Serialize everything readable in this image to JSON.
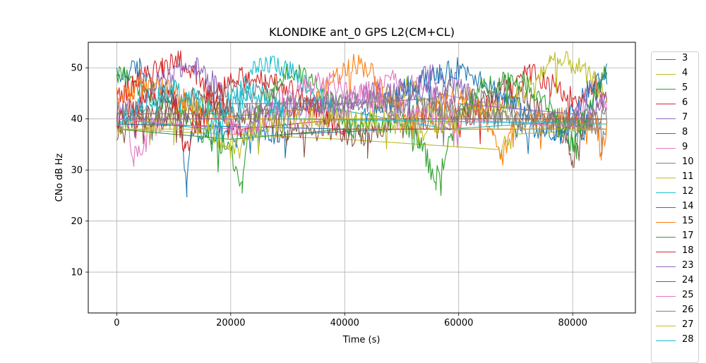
{
  "chart_data": {
    "type": "line",
    "title": "KLONDIKE ant_0 GPS L2(CM+CL)",
    "xlabel": "Time (s)",
    "ylabel": "CNo dB Hz",
    "xlim": [
      -5000,
      91000
    ],
    "ylim": [
      2,
      55
    ],
    "xticks": [
      0,
      20000,
      40000,
      60000,
      80000
    ],
    "yticks": [
      10,
      20,
      30,
      40,
      50
    ],
    "grid": true,
    "legend_position": "right",
    "series": [
      {
        "name": "3",
        "color": "#1f77b4",
        "x": [
          0,
          4000,
          8000,
          11000,
          12300,
          13000,
          16000,
          30000,
          50000,
          70000,
          82000,
          84000,
          86000
        ],
        "y": [
          48,
          50,
          46,
          42,
          26,
          38,
          37,
          37,
          38,
          38,
          38,
          45,
          49
        ]
      },
      {
        "name": "4",
        "color": "#bcbd22",
        "x": [
          0,
          20000,
          40000,
          67000,
          70000,
          86000
        ],
        "y": [
          38,
          37,
          36,
          34,
          37,
          38
        ]
      },
      {
        "name": "5",
        "color": "#2ca02c",
        "x": [
          0,
          6000,
          12000,
          16000,
          20000,
          22000,
          23000,
          26000,
          30000,
          32000,
          36000,
          40000
        ],
        "y": [
          49,
          45,
          40,
          36,
          34,
          27,
          38,
          44,
          49,
          49,
          46,
          40
        ]
      },
      {
        "name": "6",
        "color": "#d62728",
        "x": [
          0,
          3000,
          8000,
          11000,
          14000,
          18000,
          22000,
          40000,
          60000,
          68000,
          72000,
          76000,
          80000,
          84000,
          86000
        ],
        "y": [
          44,
          47,
          50,
          52,
          48,
          42,
          38,
          40,
          40,
          44,
          49,
          47,
          44,
          46,
          43
        ]
      },
      {
        "name": "7",
        "color": "#9467bd",
        "x": [
          0,
          4000,
          8000,
          11000,
          14000,
          17000,
          20000,
          40000,
          50000,
          55000,
          60000,
          63000
        ],
        "y": [
          40,
          44,
          48,
          50,
          50,
          47,
          43,
          43,
          46,
          49,
          47,
          43
        ]
      },
      {
        "name": "8",
        "color": "#8c564b",
        "x": [
          0,
          4000,
          8000,
          12000,
          16000,
          20000,
          50000,
          60000,
          64000,
          68000,
          72000,
          76000,
          79000,
          80000,
          82000,
          86000
        ],
        "y": [
          38,
          40,
          42,
          44,
          45,
          40,
          40,
          40,
          44,
          47,
          44,
          40,
          36,
          31,
          38,
          45
        ]
      },
      {
        "name": "9",
        "color": "#e377c2",
        "x": [
          0,
          1500,
          3000,
          6000,
          8000,
          30000,
          40000,
          44000,
          48000,
          52000,
          56000,
          80000,
          84000,
          86000
        ],
        "y": [
          43,
          40,
          32,
          38,
          40,
          40,
          42,
          46,
          48,
          47,
          45,
          40,
          47,
          43
        ]
      },
      {
        "name": "10",
        "color": "#7f7f7f",
        "x": [
          0,
          4000,
          8000,
          14000,
          20000,
          30000,
          40000,
          56000,
          58000,
          62000,
          72000,
          86000
        ],
        "y": [
          40,
          42,
          40,
          42,
          46,
          44,
          43,
          44,
          46,
          44,
          42,
          38
        ]
      },
      {
        "name": "11",
        "color": "#bcbd22",
        "x": [
          0,
          10000,
          12000,
          16000,
          20000,
          44000,
          48000,
          52000,
          56000,
          68000,
          72000,
          76000,
          80000,
          84000,
          86000
        ],
        "y": [
          38,
          40,
          43,
          42,
          40,
          40,
          46,
          46,
          41,
          42,
          46,
          51,
          51,
          47,
          45
        ]
      },
      {
        "name": "12",
        "color": "#17becf",
        "x": [
          0,
          16000,
          20000,
          24000,
          27000,
          30000,
          34000,
          38000,
          58000,
          86000
        ],
        "y": [
          40,
          38,
          44,
          49,
          51,
          50,
          46,
          42,
          38,
          40
        ]
      },
      {
        "name": "14",
        "color": "#1f77b4",
        "x": [
          0,
          40000,
          46000,
          52000,
          58000,
          60000,
          64000,
          68000,
          76000,
          78000,
          80000,
          83000,
          86000
        ],
        "y": [
          39,
          38,
          42,
          47,
          49,
          50,
          48,
          44,
          38,
          38,
          41,
          46,
          49
        ]
      },
      {
        "name": "15",
        "color": "#ff7f0e",
        "x": [
          0,
          3000,
          8000,
          12000,
          16000,
          34000,
          38000,
          42000,
          44000,
          48000,
          52000,
          56000,
          62000,
          66000,
          67500,
          70000,
          84000,
          85000,
          86000
        ],
        "y": [
          44,
          46,
          46,
          44,
          40,
          42,
          48,
          51,
          50,
          44,
          40,
          43,
          44,
          38,
          32,
          40,
          40,
          33,
          38
        ]
      },
      {
        "name": "17",
        "color": "#2ca02c",
        "x": [
          0,
          20000,
          40000,
          50000,
          53000,
          56000,
          60000,
          64000,
          68000,
          72000,
          76000,
          80000,
          84000,
          86000
        ],
        "y": [
          38,
          36,
          38,
          40,
          36,
          28,
          41,
          46,
          48,
          47,
          43,
          35,
          45,
          49
        ]
      },
      {
        "name": "18",
        "color": "#d62728",
        "x": [
          0,
          6000,
          10000,
          12000,
          14000,
          18000,
          22000,
          26000,
          30000,
          34000,
          37000,
          40000,
          86000
        ],
        "y": [
          40,
          44,
          44,
          34,
          40,
          46,
          48,
          48,
          46,
          43,
          40,
          38,
          38
        ]
      },
      {
        "name": "23",
        "color": "#9467bd",
        "x": [
          0,
          20000,
          30000,
          40000,
          44000,
          48000,
          52000,
          56000,
          60000,
          80000,
          86000
        ],
        "y": [
          40,
          40,
          42,
          43,
          45,
          45,
          46,
          45,
          43,
          41,
          43
        ]
      },
      {
        "name": "24",
        "color": "#8c564b",
        "x": [
          0,
          12000,
          20000,
          26000,
          30000,
          36000,
          40000,
          44000,
          48000,
          86000
        ],
        "y": [
          41,
          40,
          42,
          40,
          38,
          38,
          37,
          36,
          40,
          40
        ]
      },
      {
        "name": "25",
        "color": "#e377c2",
        "x": [
          0,
          20000,
          26000,
          30000,
          34000,
          38000,
          46000,
          60000,
          86000
        ],
        "y": [
          40,
          38,
          40,
          44,
          47,
          47,
          43,
          40,
          38
        ]
      },
      {
        "name": "26",
        "color": "#7f7f7f",
        "x": [
          0,
          20000,
          30000,
          40000,
          50000,
          60000,
          70000,
          80000,
          86000
        ],
        "y": [
          41,
          41,
          42,
          44,
          43,
          41,
          40,
          40,
          40
        ]
      },
      {
        "name": "27",
        "color": "#bcbd22",
        "x": [
          0,
          16000,
          20000,
          24000,
          30000,
          40000,
          50000,
          60000,
          86000
        ],
        "y": [
          38,
          38,
          34,
          38,
          40,
          40,
          39,
          38,
          38
        ]
      },
      {
        "name": "28",
        "color": "#17becf",
        "x": [
          0,
          6000,
          10000,
          14000,
          18000,
          22000,
          24000,
          26000,
          30000,
          86000
        ],
        "y": [
          39,
          44,
          46,
          44,
          40,
          44,
          46,
          44,
          40,
          39
        ]
      }
    ]
  }
}
